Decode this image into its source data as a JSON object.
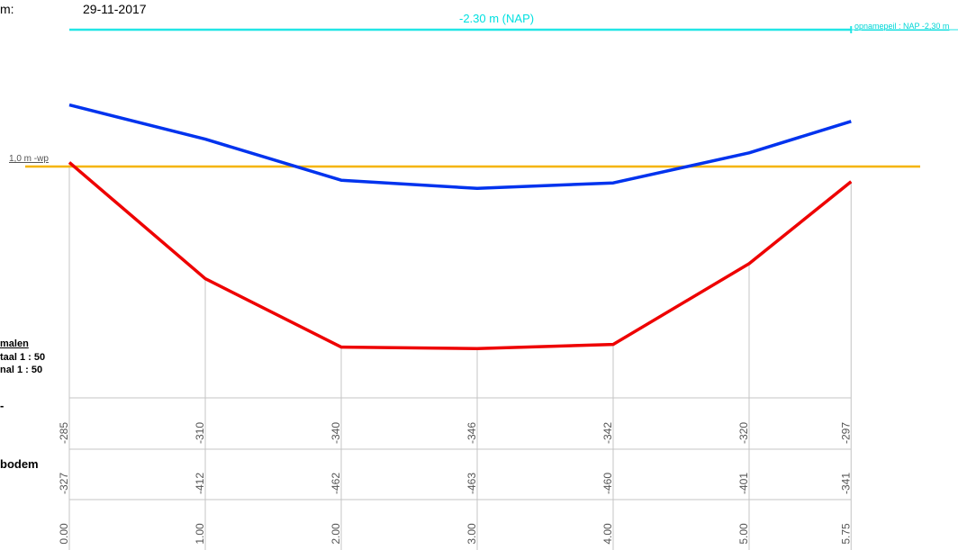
{
  "header": {
    "date_label": "m:",
    "date_value": "29-11-2017"
  },
  "scales": {
    "title": "malen",
    "horizontal": "taal  1 : 50",
    "vertical": "nal  1 : 50"
  },
  "row_labels": {
    "water": "-",
    "bottom": "bodem"
  },
  "reference": {
    "nap_title": "-2.30 m (NAP)",
    "nap_label": "opnamepeil : NAP -2,30 m",
    "wp_label": "1,0 m -wp"
  },
  "colors": {
    "water_surface": "#0033ee",
    "bottom": "#ee0000",
    "nap_line": "#22e6e6",
    "waterpeil": "#f5b400",
    "grid": "#c4c4c4"
  },
  "chart_data": {
    "type": "line",
    "x": [
      0.0,
      1.0,
      2.0,
      3.0,
      4.0,
      5.0,
      5.75
    ],
    "x_tick_labels": [
      "0.00",
      "1.00",
      "2.00",
      "3.00",
      "4.00",
      "5.00",
      "5.75"
    ],
    "series": [
      {
        "name": "",
        "color": "#0033ee",
        "values": [
          -285,
          -310,
          -340,
          -346,
          -342,
          -320,
          -297
        ]
      },
      {
        "name": "bodem",
        "color": "#ee0000",
        "values": [
          -327,
          -412,
          -462,
          -463,
          -460,
          -401,
          -341
        ]
      }
    ],
    "row_values": {
      "water": [
        "-285",
        "-310",
        "-340",
        "-346",
        "-342",
        "-320",
        "-297"
      ],
      "bottom": [
        "-327",
        "-412",
        "-462",
        "-463",
        "-460",
        "-401",
        "-341"
      ]
    },
    "reference_levels": {
      "nap": -230,
      "waterpeil": -330
    },
    "ylim": [
      -470,
      -225
    ],
    "grid": true
  }
}
